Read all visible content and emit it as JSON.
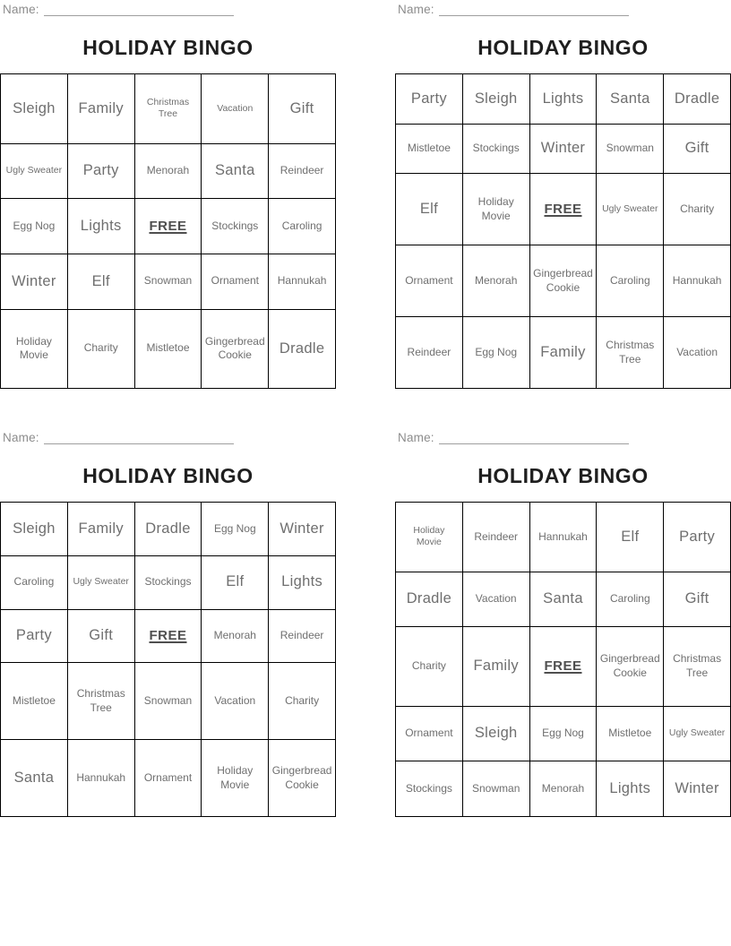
{
  "strings": {
    "name_label": "Name:",
    "title": "HOLIDAY BINGO",
    "free_label": "FREE"
  },
  "colors": {
    "background": "#ffffff",
    "border": "#000000",
    "title_text": "#1f1f1f",
    "name_text": "#8c8c8c",
    "cell_text": "#6f6f6f",
    "free_text": "#4f4f4f"
  },
  "cards": [
    {
      "position": "top-left",
      "rows": [
        [
          {
            "text": "Sleigh",
            "size": "lg"
          },
          {
            "text": "Family",
            "size": "lg"
          },
          {
            "text": "Christmas Tree",
            "size": "sm",
            "wrap": true
          },
          {
            "text": "Vacation",
            "size": "sm"
          },
          {
            "text": "Gift",
            "size": "lg"
          }
        ],
        [
          {
            "text": "Ugly Sweater",
            "size": "sm"
          },
          {
            "text": "Party",
            "size": "lg"
          },
          {
            "text": "Menorah",
            "size": "md"
          },
          {
            "text": "Santa",
            "size": "lg"
          },
          {
            "text": "Reindeer",
            "size": "md"
          }
        ],
        [
          {
            "text": "Egg Nog",
            "size": "md"
          },
          {
            "text": "Lights",
            "size": "lg"
          },
          {
            "text": "FREE",
            "size": "free",
            "free": true
          },
          {
            "text": "Stockings",
            "size": "md"
          },
          {
            "text": "Caroling",
            "size": "md"
          }
        ],
        [
          {
            "text": "Winter",
            "size": "lg"
          },
          {
            "text": "Elf",
            "size": "lg"
          },
          {
            "text": "Snowman",
            "size": "md"
          },
          {
            "text": "Ornament",
            "size": "md"
          },
          {
            "text": "Hannukah",
            "size": "md"
          }
        ],
        [
          {
            "text": "Holiday Movie",
            "size": "md",
            "wrap": true
          },
          {
            "text": "Charity",
            "size": "md"
          },
          {
            "text": "Mistletoe",
            "size": "md"
          },
          {
            "text": "Gingerbread Cookie",
            "size": "md",
            "wrap": true
          },
          {
            "text": "Dradle",
            "size": "lg"
          }
        ]
      ]
    },
    {
      "position": "top-right",
      "rows": [
        [
          {
            "text": "Party",
            "size": "lg"
          },
          {
            "text": "Sleigh",
            "size": "lg"
          },
          {
            "text": "Lights",
            "size": "lg"
          },
          {
            "text": "Santa",
            "size": "lg"
          },
          {
            "text": "Dradle",
            "size": "lg"
          }
        ],
        [
          {
            "text": "Mistletoe",
            "size": "md"
          },
          {
            "text": "Stockings",
            "size": "md"
          },
          {
            "text": "Winter",
            "size": "lg"
          },
          {
            "text": "Snowman",
            "size": "md"
          },
          {
            "text": "Gift",
            "size": "lg"
          }
        ],
        [
          {
            "text": "Elf",
            "size": "lg"
          },
          {
            "text": "Holiday Movie",
            "size": "md",
            "wrap": true
          },
          {
            "text": "FREE",
            "size": "free",
            "free": true
          },
          {
            "text": "Ugly Sweater",
            "size": "sm"
          },
          {
            "text": "Charity",
            "size": "md"
          }
        ],
        [
          {
            "text": "Ornament",
            "size": "md"
          },
          {
            "text": "Menorah",
            "size": "md"
          },
          {
            "text": "Gingerbread Cookie",
            "size": "md",
            "wrap": true
          },
          {
            "text": "Caroling",
            "size": "md"
          },
          {
            "text": "Hannukah",
            "size": "md"
          }
        ],
        [
          {
            "text": "Reindeer",
            "size": "md"
          },
          {
            "text": "Egg Nog",
            "size": "md"
          },
          {
            "text": "Family",
            "size": "lg"
          },
          {
            "text": "Christmas Tree",
            "size": "md",
            "wrap": true
          },
          {
            "text": "Vacation",
            "size": "md"
          }
        ]
      ]
    },
    {
      "position": "bottom-left",
      "rows": [
        [
          {
            "text": "Sleigh",
            "size": "lg"
          },
          {
            "text": "Family",
            "size": "lg"
          },
          {
            "text": "Dradle",
            "size": "lg"
          },
          {
            "text": "Egg Nog",
            "size": "md"
          },
          {
            "text": "Winter",
            "size": "lg"
          }
        ],
        [
          {
            "text": "Caroling",
            "size": "md"
          },
          {
            "text": "Ugly Sweater",
            "size": "sm"
          },
          {
            "text": "Stockings",
            "size": "md"
          },
          {
            "text": "Elf",
            "size": "lg"
          },
          {
            "text": "Lights",
            "size": "lg"
          }
        ],
        [
          {
            "text": "Party",
            "size": "lg"
          },
          {
            "text": "Gift",
            "size": "lg"
          },
          {
            "text": "FREE",
            "size": "free",
            "free": true
          },
          {
            "text": "Menorah",
            "size": "md"
          },
          {
            "text": "Reindeer",
            "size": "md"
          }
        ],
        [
          {
            "text": "Mistletoe",
            "size": "md"
          },
          {
            "text": "Christmas Tree",
            "size": "md",
            "wrap": true
          },
          {
            "text": "Snowman",
            "size": "md"
          },
          {
            "text": "Vacation",
            "size": "md"
          },
          {
            "text": "Charity",
            "size": "md"
          }
        ],
        [
          {
            "text": "Santa",
            "size": "lg"
          },
          {
            "text": "Hannukah",
            "size": "md"
          },
          {
            "text": "Ornament",
            "size": "md"
          },
          {
            "text": "Holiday Movie",
            "size": "md",
            "wrap": true
          },
          {
            "text": "Gingerbread Cookie",
            "size": "md",
            "wrap": true
          }
        ]
      ]
    },
    {
      "position": "bottom-right",
      "rows": [
        [
          {
            "text": "Holiday Movie",
            "size": "sm",
            "wrap": true
          },
          {
            "text": "Reindeer",
            "size": "md"
          },
          {
            "text": "Hannukah",
            "size": "md"
          },
          {
            "text": "Elf",
            "size": "lg"
          },
          {
            "text": "Party",
            "size": "lg"
          }
        ],
        [
          {
            "text": "Dradle",
            "size": "lg"
          },
          {
            "text": "Vacation",
            "size": "md"
          },
          {
            "text": "Santa",
            "size": "lg"
          },
          {
            "text": "Caroling",
            "size": "md"
          },
          {
            "text": "Gift",
            "size": "lg"
          }
        ],
        [
          {
            "text": "Charity",
            "size": "md"
          },
          {
            "text": "Family",
            "size": "lg"
          },
          {
            "text": "FREE",
            "size": "free",
            "free": true
          },
          {
            "text": "Gingerbread Cookie",
            "size": "md",
            "wrap": true
          },
          {
            "text": "Christmas Tree",
            "size": "md",
            "wrap": true
          }
        ],
        [
          {
            "text": "Ornament",
            "size": "md"
          },
          {
            "text": "Sleigh",
            "size": "lg"
          },
          {
            "text": "Egg Nog",
            "size": "md"
          },
          {
            "text": "Mistletoe",
            "size": "md"
          },
          {
            "text": "Ugly Sweater",
            "size": "sm"
          }
        ],
        [
          {
            "text": "Stockings",
            "size": "md"
          },
          {
            "text": "Snowman",
            "size": "md"
          },
          {
            "text": "Menorah",
            "size": "md"
          },
          {
            "text": "Lights",
            "size": "lg"
          },
          {
            "text": "Winter",
            "size": "lg"
          }
        ]
      ]
    }
  ]
}
